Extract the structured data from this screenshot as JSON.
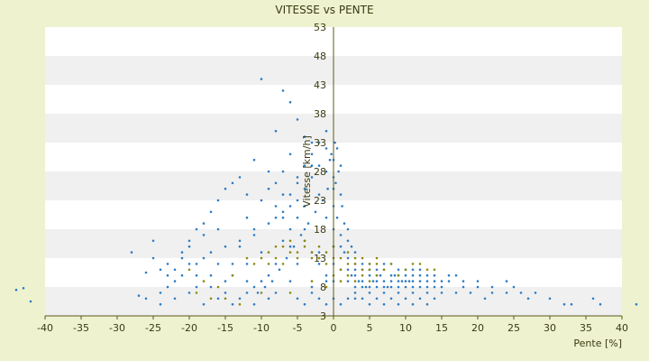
{
  "chart_data": {
    "type": "scatter",
    "title": "VITESSE vs PENTE",
    "xlabel": "Pente [%]",
    "ylabel": "Vitesse [km/h]",
    "xlim": [
      -40,
      40
    ],
    "ylim": [
      3,
      53
    ],
    "x_ticks": [
      "-40",
      "-35",
      "-30",
      "-25",
      "-20",
      "-15",
      "-10",
      "-5",
      "0",
      "5",
      "10",
      "15",
      "20",
      "25",
      "30",
      "35",
      "40"
    ],
    "y_ticks": [
      "3",
      "8",
      "13",
      "18",
      "23",
      "28",
      "33",
      "38",
      "43",
      "48",
      "53"
    ],
    "grid": true,
    "legend": "none",
    "colors": {
      "background": "#eef2cf",
      "plot_band_light": "#ffffff",
      "plot_band_dark": "#f0f0f0",
      "series_blue": "#2e7cc4",
      "series_olive": "#8a8a10",
      "axis": "#5a5a1a"
    },
    "series": [
      {
        "color": "#2e7cc4",
        "points": [
          [
            -42,
            5.5
          ],
          [
            -44,
            7.5
          ],
          [
            -43,
            7.8
          ],
          [
            -27,
            6.5
          ],
          [
            -26,
            10.5
          ],
          [
            -24,
            11
          ],
          [
            -25,
            16
          ],
          [
            -24,
            7
          ],
          [
            -23,
            12
          ],
          [
            -22,
            9
          ],
          [
            -21,
            14
          ],
          [
            -20,
            15
          ],
          [
            -19,
            8
          ],
          [
            -18,
            17
          ],
          [
            -17,
            10
          ],
          [
            -16,
            18
          ],
          [
            -15,
            9
          ],
          [
            -14,
            12
          ],
          [
            -13,
            15
          ],
          [
            -12,
            20
          ],
          [
            -11,
            17
          ],
          [
            -10,
            23
          ],
          [
            -10,
            14
          ],
          [
            -9,
            25
          ],
          [
            -9,
            10
          ],
          [
            -8,
            22
          ],
          [
            -8,
            35
          ],
          [
            -7,
            28
          ],
          [
            -7,
            20
          ],
          [
            -6,
            31
          ],
          [
            -6,
            15
          ],
          [
            -5,
            26
          ],
          [
            -5,
            12
          ],
          [
            -4,
            22
          ],
          [
            -4,
            18
          ],
          [
            -3,
            29
          ],
          [
            -3,
            8
          ],
          [
            -2,
            24
          ],
          [
            -2,
            14
          ],
          [
            -1,
            20
          ],
          [
            -1,
            9
          ],
          [
            0,
            30
          ],
          [
            0,
            27
          ],
          [
            0,
            25
          ],
          [
            0,
            22
          ],
          [
            0.5,
            32
          ],
          [
            0.5,
            20
          ],
          [
            1,
            24
          ],
          [
            1,
            17
          ],
          [
            1.5,
            14
          ],
          [
            2,
            18
          ],
          [
            2.5,
            10
          ],
          [
            3,
            12
          ],
          [
            3.5,
            9
          ],
          [
            4,
            11
          ],
          [
            4.5,
            8
          ],
          [
            5,
            10
          ],
          [
            5.5,
            9
          ],
          [
            6,
            8
          ],
          [
            6.5,
            10
          ],
          [
            7,
            9
          ],
          [
            7.5,
            8
          ],
          [
            8,
            9
          ],
          [
            8.5,
            10
          ],
          [
            9,
            8
          ],
          [
            9.5,
            9
          ],
          [
            10,
            8
          ],
          [
            10.5,
            9
          ],
          [
            11,
            8
          ],
          [
            12,
            9
          ],
          [
            13,
            8
          ],
          [
            14,
            9
          ],
          [
            15,
            8
          ],
          [
            16,
            9
          ],
          [
            17,
            7
          ],
          [
            18,
            8
          ],
          [
            19,
            7
          ],
          [
            20,
            8
          ],
          [
            21,
            6
          ],
          [
            22,
            7
          ],
          [
            24,
            7
          ],
          [
            25,
            8
          ],
          [
            27,
            6
          ],
          [
            30,
            6
          ],
          [
            32,
            5
          ],
          [
            33,
            5
          ],
          [
            36,
            6
          ],
          [
            37,
            5
          ],
          [
            42,
            5
          ],
          [
            -10,
            44
          ],
          [
            -7,
            42
          ],
          [
            -6,
            40
          ],
          [
            -5,
            37
          ],
          [
            -4,
            34
          ],
          [
            -3,
            33
          ],
          [
            -11,
            30
          ],
          [
            -13,
            27
          ],
          [
            -14,
            26
          ],
          [
            -15,
            25
          ],
          [
            -16,
            23
          ],
          [
            -17,
            21
          ],
          [
            -18,
            19
          ],
          [
            -19,
            18
          ],
          [
            -20,
            16
          ],
          [
            -21,
            13
          ],
          [
            -22,
            11
          ],
          [
            -23,
            10
          ],
          [
            -12,
            24
          ],
          [
            -9,
            28
          ],
          [
            -8,
            26
          ],
          [
            -7,
            24
          ],
          [
            -6,
            22
          ],
          [
            -5,
            20
          ],
          [
            -4,
            16
          ],
          [
            -3,
            14
          ],
          [
            -2,
            12
          ],
          [
            -1,
            10
          ],
          [
            -9,
            6
          ],
          [
            -11,
            5
          ],
          [
            -13,
            6
          ],
          [
            -15,
            7
          ],
          [
            -17,
            8
          ],
          [
            -19,
            10
          ],
          [
            -12,
            12
          ],
          [
            -11,
            8
          ],
          [
            -8,
            7
          ],
          [
            -6,
            9
          ],
          [
            -5,
            6
          ],
          [
            -4,
            5
          ],
          [
            -3,
            7
          ],
          [
            -2,
            6
          ],
          [
            -1,
            5
          ],
          [
            0,
            6
          ],
          [
            0,
            9
          ],
          [
            0,
            12
          ],
          [
            0,
            15
          ],
          [
            0,
            18
          ],
          [
            1,
            5
          ],
          [
            2,
            6
          ],
          [
            3,
            7
          ],
          [
            4,
            6
          ],
          [
            5,
            7
          ],
          [
            6,
            6
          ],
          [
            7,
            7
          ],
          [
            8,
            6
          ],
          [
            9,
            7
          ],
          [
            10,
            6
          ],
          [
            11,
            7
          ],
          [
            12,
            6
          ],
          [
            13,
            7
          ],
          [
            14,
            6
          ],
          [
            15,
            7
          ],
          [
            2,
            9
          ],
          [
            3,
            10
          ],
          [
            4,
            9
          ],
          [
            5,
            11
          ],
          [
            6,
            10
          ],
          [
            7,
            11
          ],
          [
            8,
            10
          ],
          [
            9,
            11
          ],
          [
            10,
            10
          ],
          [
            11,
            10
          ],
          [
            12,
            10
          ],
          [
            13,
            10
          ],
          [
            14,
            10
          ],
          [
            15,
            9
          ],
          [
            16,
            10
          ],
          [
            17,
            10
          ],
          [
            18,
            9
          ],
          [
            20,
            9
          ],
          [
            22,
            8
          ],
          [
            24,
            9
          ],
          [
            26,
            7
          ],
          [
            28,
            7
          ],
          [
            1,
            29
          ],
          [
            0.3,
            26
          ],
          [
            0.7,
            28
          ],
          [
            -0.5,
            30
          ],
          [
            -1,
            28
          ],
          [
            -0.8,
            25
          ],
          [
            0.2,
            33
          ],
          [
            -0.3,
            31
          ],
          [
            1.2,
            22
          ],
          [
            1.5,
            19
          ],
          [
            2,
            16
          ],
          [
            2.5,
            15
          ],
          [
            3,
            14
          ],
          [
            -1.5,
            23
          ],
          [
            -2.5,
            21
          ],
          [
            -3.5,
            19
          ],
          [
            -4.5,
            17
          ],
          [
            -5.5,
            15
          ],
          [
            -6.5,
            13
          ],
          [
            -7.5,
            11
          ],
          [
            -8.5,
            9
          ],
          [
            -9.5,
            8
          ],
          [
            -10.5,
            7
          ],
          [
            -20,
            7
          ],
          [
            -22,
            6
          ],
          [
            -24,
            5
          ],
          [
            -26,
            6
          ],
          [
            -18,
            5
          ],
          [
            -16,
            6
          ],
          [
            -14,
            5
          ],
          [
            -12,
            7
          ],
          [
            -10,
            9
          ],
          [
            -8,
            12
          ],
          [
            -7,
            16
          ],
          [
            -6,
            18
          ],
          [
            -5,
            23
          ],
          [
            -4,
            25
          ],
          [
            -3,
            27
          ],
          [
            -2,
            29
          ],
          [
            -1,
            32
          ],
          [
            3,
            11
          ],
          [
            4,
            12
          ],
          [
            5,
            12
          ],
          [
            6,
            11
          ],
          [
            7,
            12
          ],
          [
            8,
            12
          ],
          [
            9,
            10
          ],
          [
            10,
            11
          ],
          [
            11,
            11
          ],
          [
            12,
            11
          ],
          [
            4,
            8
          ],
          [
            5,
            8
          ],
          [
            6,
            9
          ],
          [
            7,
            8
          ],
          [
            8,
            8
          ],
          [
            9,
            9
          ],
          [
            10,
            9
          ],
          [
            11,
            9
          ],
          [
            12,
            8
          ],
          [
            13,
            9
          ],
          [
            14,
            8
          ],
          [
            2,
            11
          ],
          [
            2,
            13
          ],
          [
            1,
            15
          ],
          [
            1,
            11
          ],
          [
            3,
            8
          ],
          [
            3,
            6
          ],
          [
            5,
            5
          ],
          [
            7,
            5
          ],
          [
            9,
            5
          ],
          [
            11,
            5
          ],
          [
            13,
            5
          ],
          [
            -28,
            14
          ],
          [
            -25,
            13
          ],
          [
            -19,
            12
          ],
          [
            -17,
            14
          ],
          [
            -15,
            15
          ],
          [
            -13,
            16
          ],
          [
            -11,
            18
          ],
          [
            -9,
            19
          ],
          [
            -8,
            20
          ],
          [
            -7,
            21
          ],
          [
            -6,
            24
          ],
          [
            -5,
            27
          ],
          [
            -4,
            29
          ],
          [
            -3,
            31
          ],
          [
            -2,
            33
          ],
          [
            -1,
            35
          ],
          [
            -12,
            9
          ],
          [
            -14,
            10
          ],
          [
            -16,
            12
          ],
          [
            -18,
            13
          ],
          [
            -20,
            12
          ],
          [
            -21,
            10
          ],
          [
            -23,
            8
          ]
        ]
      },
      {
        "color": "#8a8a10",
        "points": [
          [
            -10,
            13
          ],
          [
            -9,
            14
          ],
          [
            -8,
            13
          ],
          [
            -7,
            15
          ],
          [
            -6,
            14
          ],
          [
            -5,
            13
          ],
          [
            -4,
            15
          ],
          [
            -3,
            14
          ],
          [
            -2,
            13
          ],
          [
            -1,
            14
          ],
          [
            0,
            15
          ],
          [
            -9,
            12
          ],
          [
            -7,
            12
          ],
          [
            -5,
            14
          ],
          [
            -3,
            13
          ],
          [
            -1,
            12
          ],
          [
            1,
            13
          ],
          [
            2,
            14
          ],
          [
            3,
            12
          ],
          [
            4,
            13
          ],
          [
            5,
            11
          ],
          [
            6,
            12
          ],
          [
            7,
            11
          ],
          [
            8,
            12
          ],
          [
            9,
            10
          ],
          [
            10,
            11
          ],
          [
            11,
            12
          ],
          [
            12,
            12
          ],
          [
            13,
            11
          ],
          [
            14,
            11
          ],
          [
            -6,
            16
          ],
          [
            -4,
            16
          ],
          [
            -2,
            15
          ],
          [
            0,
            13
          ],
          [
            1,
            11
          ],
          [
            2,
            12
          ],
          [
            3,
            13
          ],
          [
            4,
            11
          ],
          [
            5,
            12
          ],
          [
            6,
            13
          ],
          [
            -12,
            13
          ],
          [
            -11,
            12
          ],
          [
            -8,
            15
          ],
          [
            0,
            10
          ],
          [
            1,
            9
          ],
          [
            2,
            10
          ],
          [
            3,
            9
          ],
          [
            4,
            10
          ],
          [
            5,
            9
          ],
          [
            6,
            10
          ],
          [
            -14,
            10
          ],
          [
            -16,
            8
          ],
          [
            -18,
            9
          ],
          [
            -20,
            11
          ],
          [
            -15,
            6
          ],
          [
            -13,
            5
          ],
          [
            -17,
            6
          ],
          [
            -19,
            7
          ],
          [
            -10,
            7
          ],
          [
            -6,
            7
          ],
          [
            -3,
            9
          ],
          [
            -1,
            8
          ]
        ]
      }
    ]
  }
}
